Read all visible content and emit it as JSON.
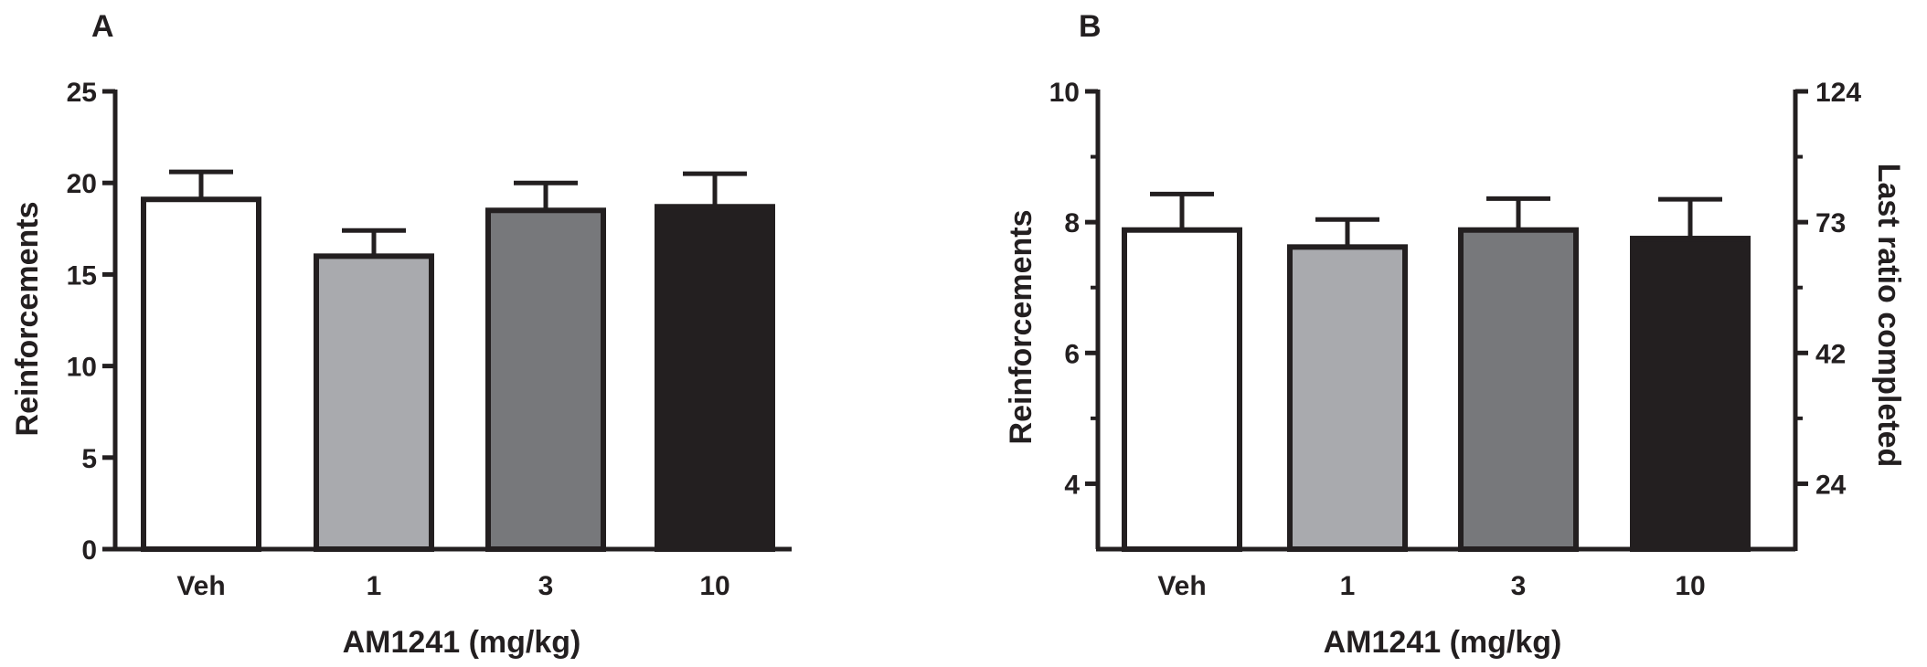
{
  "chart_data": [
    {
      "panel": "A",
      "type": "bar",
      "xlabel": "AM1241 (mg/kg)",
      "ylabel": "Reinforcements",
      "categories": [
        "Veh",
        "1",
        "3",
        "10"
      ],
      "values": [
        19.1,
        16.0,
        18.5,
        18.7
      ],
      "errors": [
        1.5,
        1.4,
        1.5,
        1.8
      ],
      "ylim": [
        0,
        25
      ],
      "yticks": [
        "0",
        "5",
        "10",
        "15",
        "20",
        "25"
      ],
      "colors": [
        "#ffffff",
        "#a9aaae",
        "#77787b",
        "#231f20"
      ],
      "grid": false,
      "legend": "none"
    },
    {
      "panel": "B",
      "type": "bar",
      "xlabel": "AM1241 (mg/kg)",
      "ylabel": "Reinforcements",
      "y2label": "Last ratio completed",
      "categories": [
        "Veh",
        "1",
        "3",
        "10"
      ],
      "values": [
        7.88,
        7.62,
        7.88,
        7.75
      ],
      "errors": [
        0.55,
        0.42,
        0.48,
        0.6
      ],
      "ylim": [
        3,
        10
      ],
      "yticks": [
        "4",
        "6",
        "8",
        "10"
      ],
      "y2ticks": [
        "24",
        "42",
        "73",
        "124"
      ],
      "colors": [
        "#ffffff",
        "#a9aaae",
        "#77787b",
        "#231f20"
      ],
      "grid": false,
      "legend": "none"
    }
  ]
}
